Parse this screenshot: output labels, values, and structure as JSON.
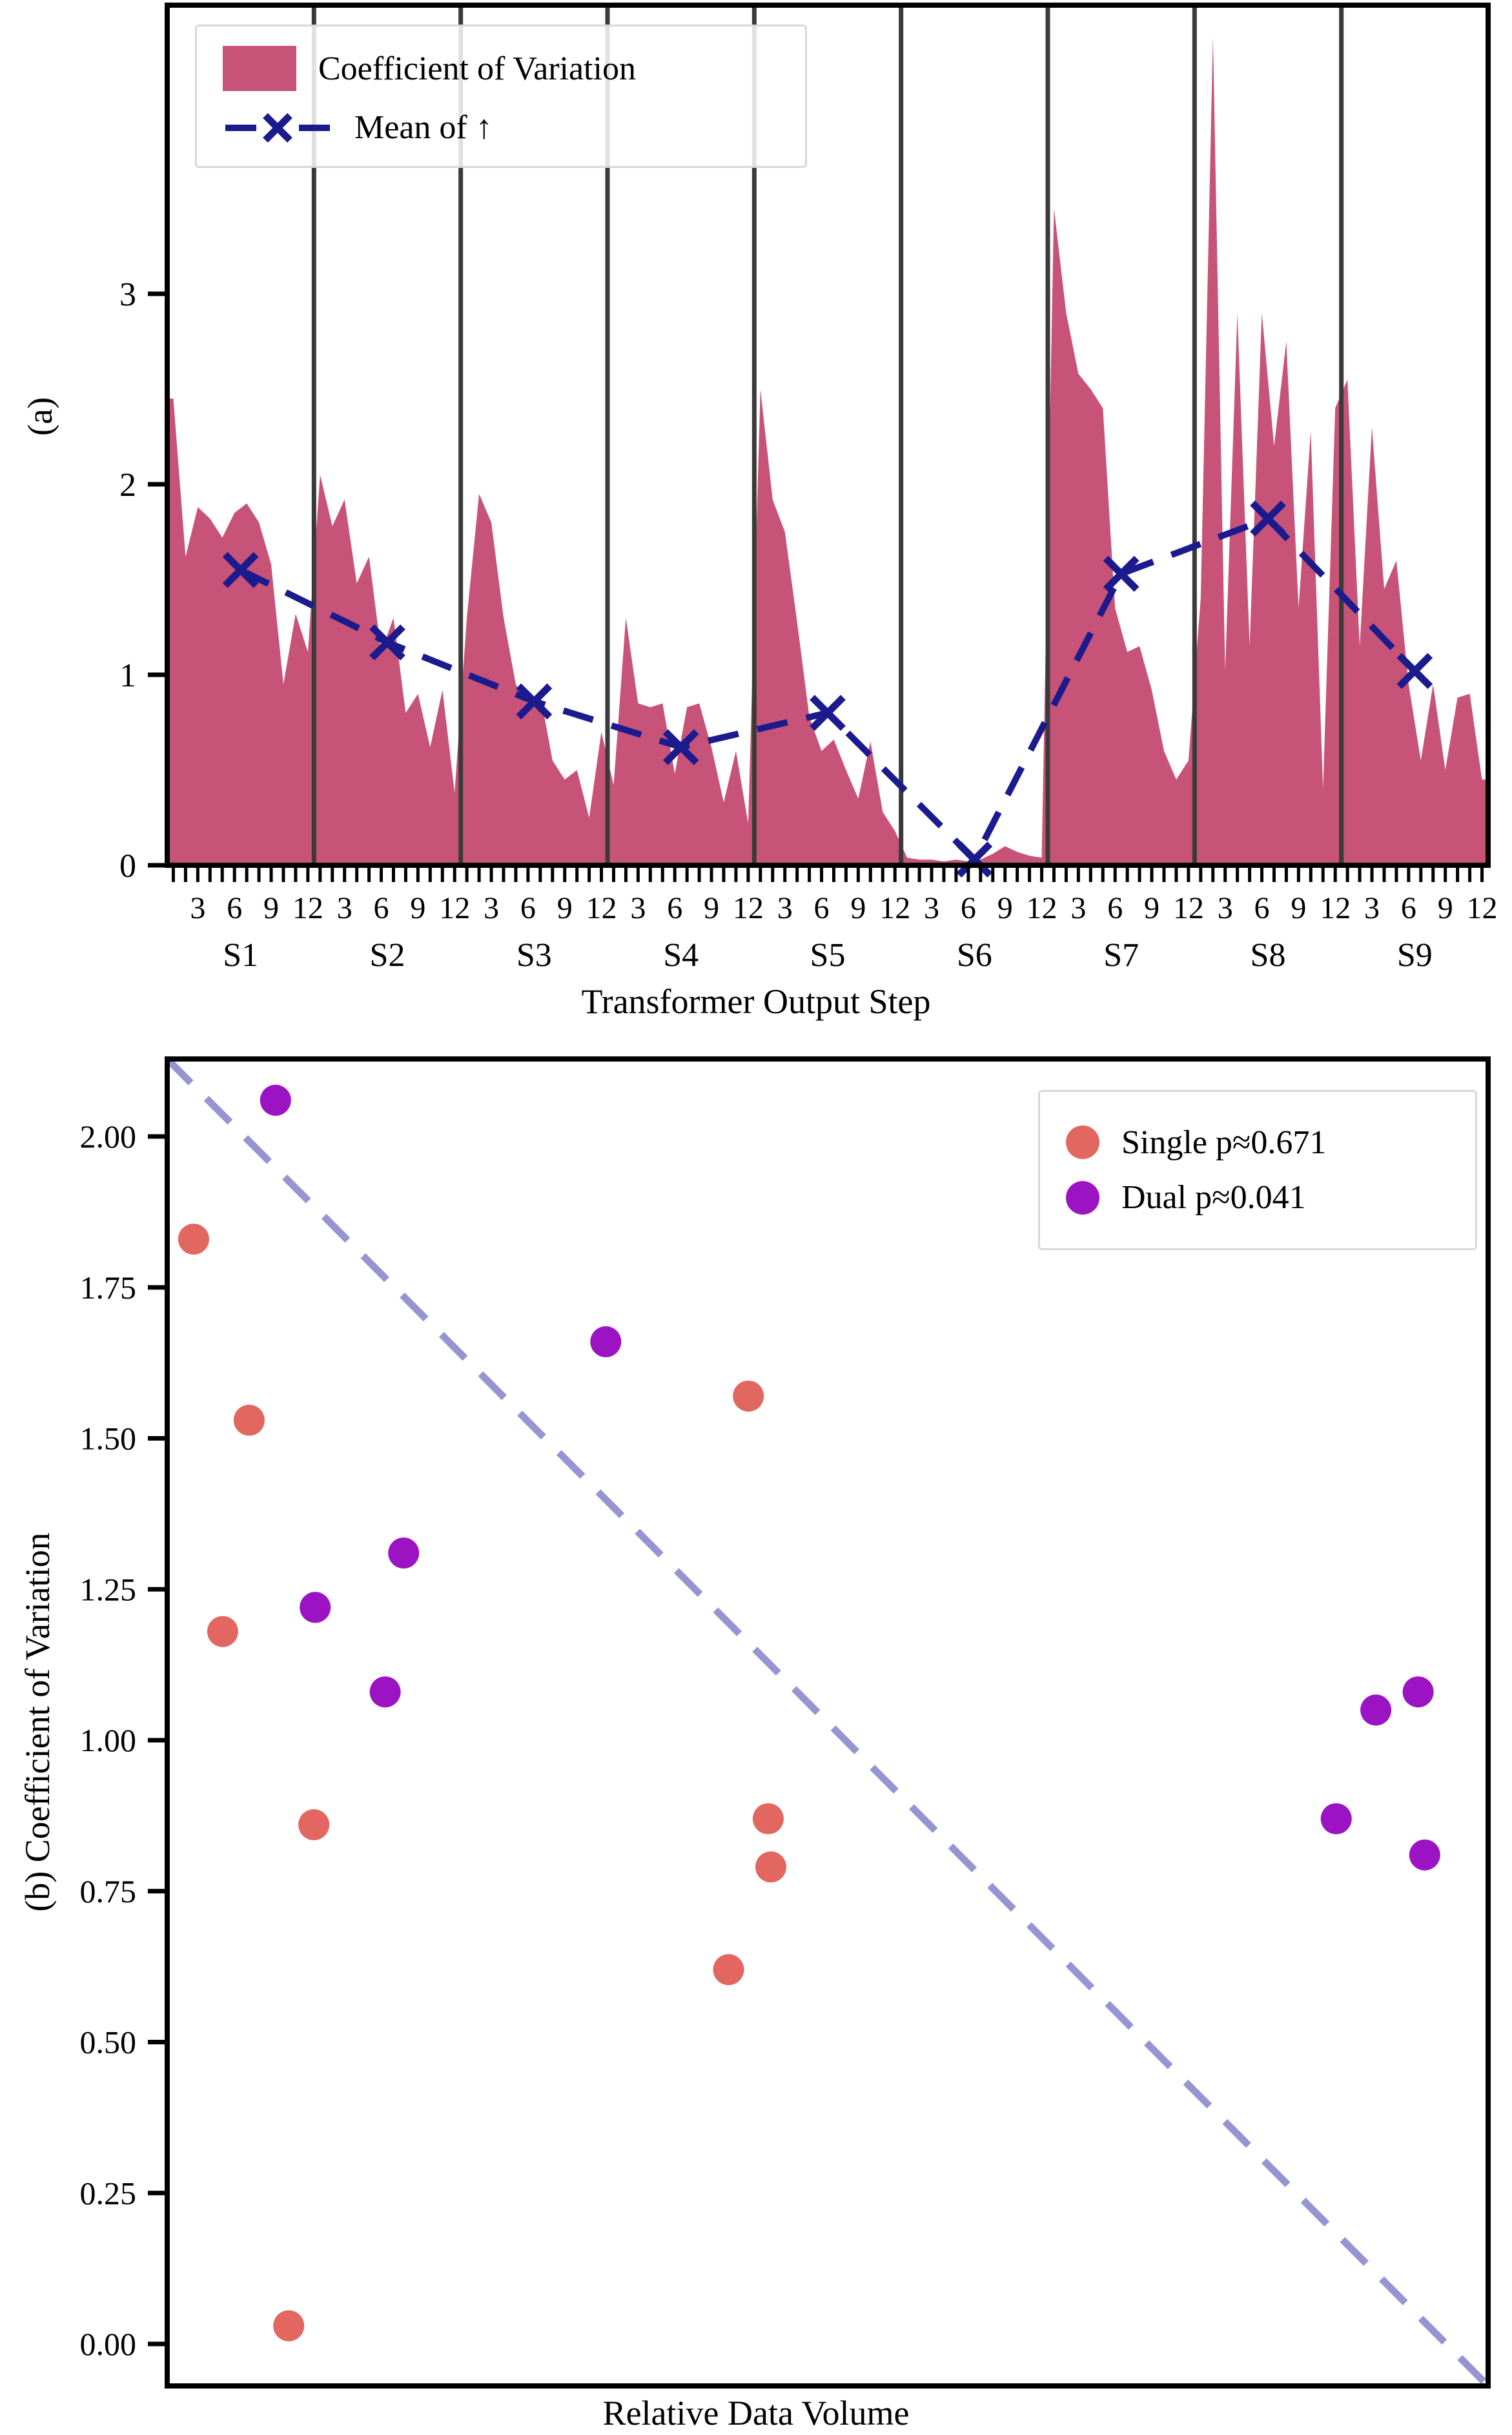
{
  "figure": {
    "panel_a": {
      "ylabel": "(a)",
      "xlabel": "Transformer Output Step",
      "legend": [
        {
          "label": "Coefficient of Variation",
          "marker": "filled-area-swatch",
          "color": "#c85379"
        },
        {
          "label": "Mean of ↑",
          "marker": "dashed-line-x",
          "color": "#1b1b8e"
        }
      ]
    },
    "panel_b": {
      "ylabel": "(b) Coefficient of Variation",
      "xlabel": "Relative Data Volume",
      "legend": [
        {
          "label": "Single p≈0.671",
          "marker": "dot",
          "color": "#e16760"
        },
        {
          "label": "Dual p≈0.041",
          "marker": "dot",
          "color": "#9c13c4"
        }
      ]
    }
  },
  "chart_data": [
    {
      "type": "area",
      "panel": "a",
      "ylabel": "(a)",
      "xlabel": "Transformer Output Step",
      "yticks": [
        0,
        1,
        2,
        3
      ],
      "ylim": [
        0,
        4.5
      ],
      "segments": [
        "S1",
        "S2",
        "S3",
        "S4",
        "S5",
        "S6",
        "S7",
        "S8",
        "S9"
      ],
      "steps_per_segment": 12,
      "xtick_labeled_steps": [
        3,
        6,
        9,
        12
      ],
      "separator_color": "#3a3a3a",
      "grid": false,
      "legend_position": "upper-left",
      "series": [
        {
          "name": "Coefficient of Variation",
          "type": "filled-area",
          "color": "#c85379",
          "values_by_segment": [
            [
              2.45,
              1.62,
              1.88,
              1.82,
              1.72,
              1.85,
              1.9,
              1.8,
              1.58,
              0.95,
              1.32,
              1.12
            ],
            [
              2.05,
              1.78,
              1.92,
              1.48,
              1.62,
              1.12,
              1.3,
              0.8,
              0.9,
              0.62,
              0.92,
              0.38
            ],
            [
              1.3,
              1.95,
              1.8,
              1.3,
              0.95,
              0.85,
              0.9,
              0.55,
              0.45,
              0.5,
              0.25,
              0.7
            ],
            [
              0.42,
              1.3,
              0.85,
              0.83,
              0.85,
              0.48,
              0.83,
              0.85,
              0.62,
              0.33,
              0.6,
              0.22
            ],
            [
              2.5,
              1.92,
              1.75,
              1.28,
              0.78,
              0.6,
              0.66,
              0.5,
              0.35,
              0.65,
              0.28,
              0.18
            ],
            [
              0.04,
              0.03,
              0.03,
              0.02,
              0.03,
              0.02,
              0.03,
              0.06,
              0.1,
              0.07,
              0.05,
              0.04
            ],
            [
              3.45,
              2.9,
              2.58,
              2.5,
              2.4,
              1.35,
              1.12,
              1.15,
              0.92,
              0.6,
              0.45,
              0.55
            ],
            [
              1.4,
              4.35,
              1.02,
              2.9,
              1.15,
              2.9,
              2.2,
              2.75,
              1.35,
              2.28,
              0.4,
              2.4
            ],
            [
              2.55,
              1.15,
              2.3,
              1.45,
              1.6,
              0.95,
              0.55,
              0.95,
              0.5,
              0.88,
              0.9,
              0.45
            ]
          ]
        },
        {
          "name": "Mean of ↑",
          "type": "dashed-line-x-markers",
          "color": "#1b1b8e",
          "segment_means": [
            1.55,
            1.17,
            0.86,
            0.62,
            0.8,
            0.03,
            1.53,
            1.82,
            1.02
          ]
        }
      ]
    },
    {
      "type": "scatter",
      "panel": "b",
      "ylabel": "(b) Coefficient of Variation",
      "xlabel": "Relative Data Volume",
      "yticks": [
        0.0,
        0.25,
        0.5,
        0.75,
        1.0,
        1.25,
        1.5,
        1.75,
        2.0
      ],
      "ytick_format": "2dp",
      "ylim": [
        -0.07,
        2.13
      ],
      "x_units": "fraction_of_axis_width",
      "grid": false,
      "legend_position": "upper-right",
      "diagonal_reference_line": {
        "color": "#9595d2",
        "style": "dashed",
        "from_corner": "top-left",
        "to_corner": "bottom-right"
      },
      "series": [
        {
          "name": "Single p≈0.671",
          "color": "#e16760",
          "points": [
            [
              0.02,
              1.83
            ],
            [
              0.042,
              1.18
            ],
            [
              0.062,
              1.53
            ],
            [
              0.092,
              0.03
            ],
            [
              0.111,
              0.86
            ],
            [
              0.425,
              0.62
            ],
            [
              0.44,
              1.57
            ],
            [
              0.455,
              0.87
            ],
            [
              0.457,
              0.79
            ]
          ]
        },
        {
          "name": "Dual p≈0.041",
          "color": "#9c13c4",
          "points": [
            [
              0.082,
              2.06
            ],
            [
              0.112,
              1.22
            ],
            [
              0.165,
              1.08
            ],
            [
              0.179,
              1.31
            ],
            [
              0.332,
              1.66
            ],
            [
              0.885,
              0.87
            ],
            [
              0.915,
              1.05
            ],
            [
              0.947,
              1.08
            ],
            [
              0.952,
              0.81
            ]
          ]
        }
      ]
    }
  ]
}
